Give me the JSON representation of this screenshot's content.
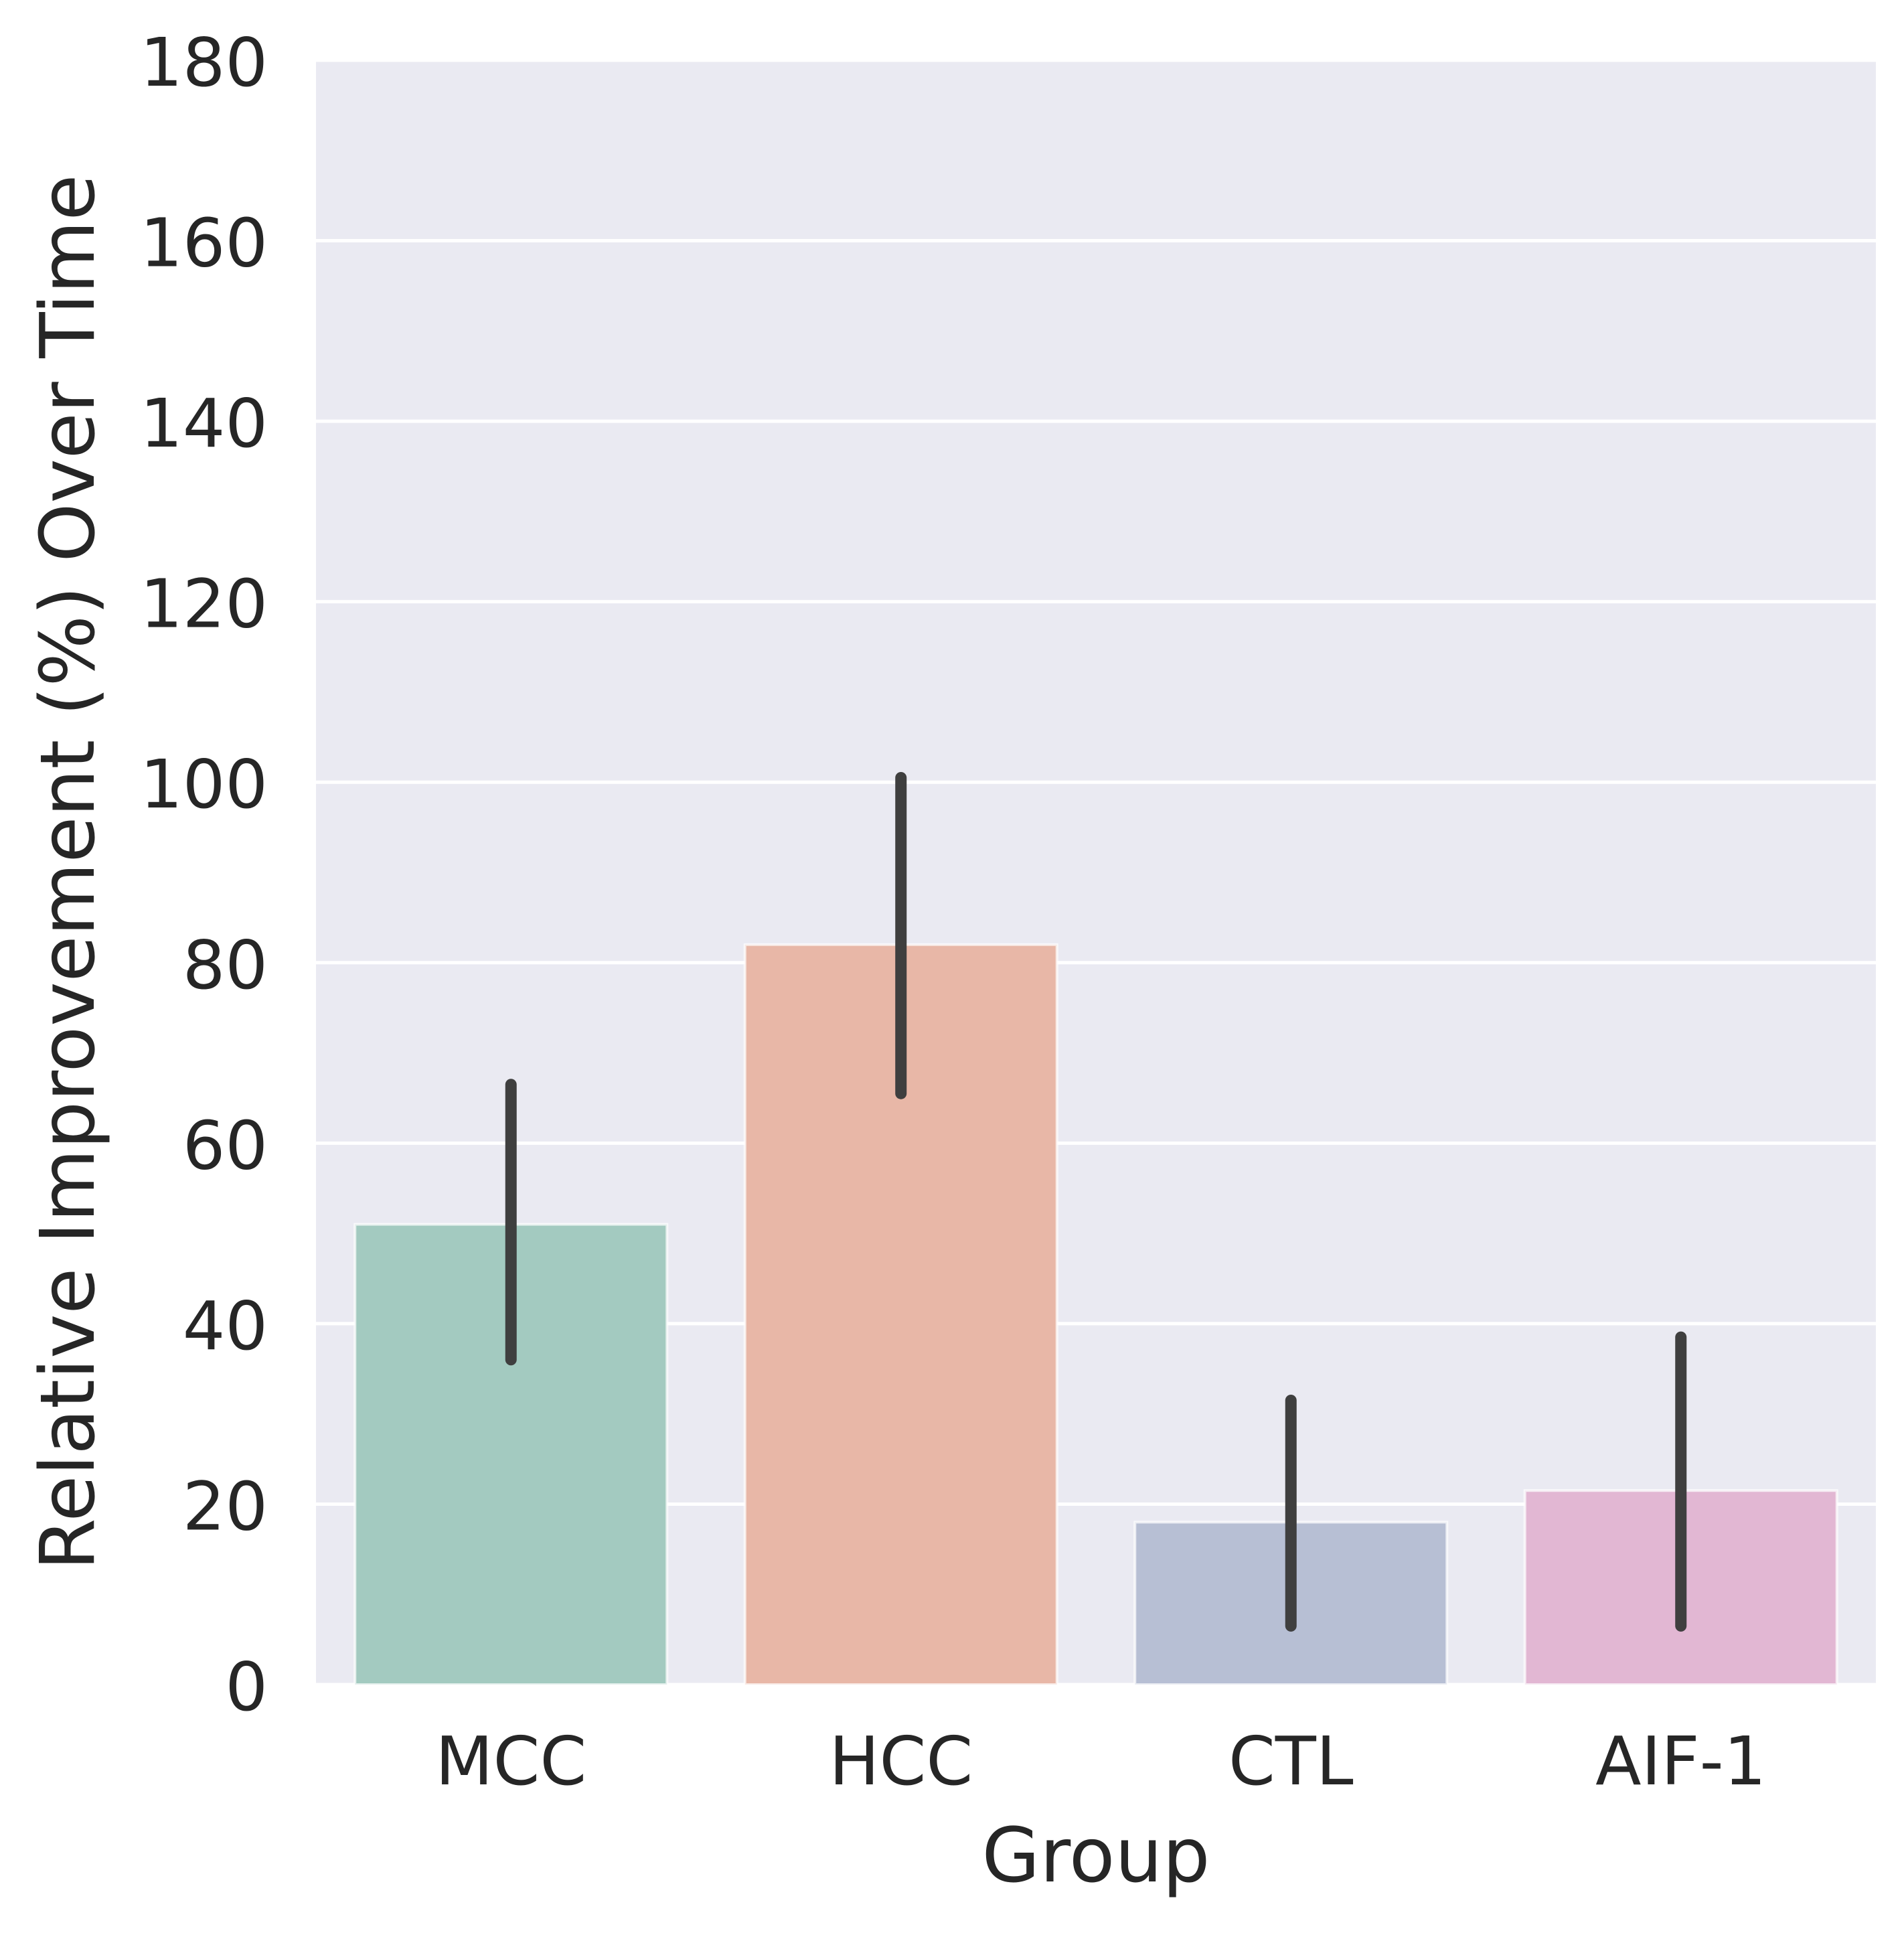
{
  "chart_data": {
    "type": "bar",
    "xlabel": "Group",
    "ylabel": "Relative Improvement (%) Over Time",
    "categories": [
      "MCC",
      "HCC",
      "CTL",
      "AIF-1"
    ],
    "values": [
      51,
      82,
      18,
      21.5
    ],
    "error_bars": [
      {
        "low": 36,
        "high": 66.5
      },
      {
        "low": 65.5,
        "high": 100.5
      },
      {
        "low": 6.5,
        "high": 31.5
      },
      {
        "low": 6.5,
        "high": 38.5
      }
    ],
    "colors": [
      "#a3cac0",
      "#e8b7a7",
      "#b7bfd4",
      "#e2b7d3"
    ],
    "error_bar_color": "#3f3f3f",
    "ylim": [
      0,
      180
    ],
    "yticks": [
      "0",
      "20",
      "40",
      "60",
      "80",
      "100",
      "120",
      "140",
      "160",
      "180"
    ],
    "grid": true,
    "background_color": "#eaeaf2",
    "grid_color": "#ffffff"
  }
}
